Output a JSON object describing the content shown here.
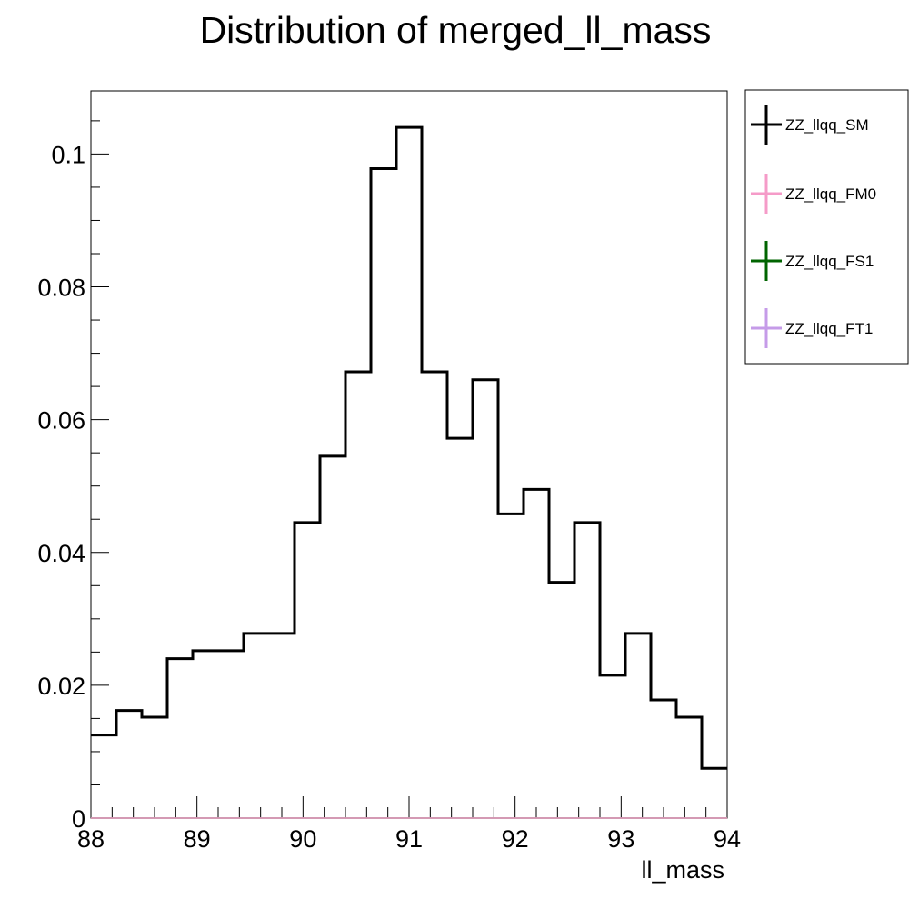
{
  "chart_data": {
    "type": "histogram-step",
    "title": "Distribution of merged_ll_mass",
    "xlabel": "ll_mass",
    "ylabel": "",
    "xlim": [
      88,
      94
    ],
    "ylim": [
      0,
      0.1095
    ],
    "x_major_ticks": [
      88,
      89,
      90,
      91,
      92,
      93,
      94
    ],
    "x_tick_labels": [
      "88",
      "89",
      "90",
      "91",
      "92",
      "93",
      "94"
    ],
    "y_major_ticks": [
      0,
      0.02,
      0.04,
      0.06,
      0.08,
      0.1
    ],
    "y_tick_labels": [
      "0",
      "0.02",
      "0.04",
      "0.06",
      "0.08",
      "0.1"
    ],
    "bin_edges": [
      88.0,
      88.24,
      88.48,
      88.72,
      88.96,
      89.2,
      89.44,
      89.68,
      89.92,
      90.16,
      90.4,
      90.64,
      90.88,
      91.12,
      91.36,
      91.6,
      91.84,
      92.08,
      92.32,
      92.56,
      92.8,
      93.04,
      93.28,
      93.52,
      93.76,
      94.0
    ],
    "series": [
      {
        "name": "ZZ_llqq_SM",
        "color": "#000000",
        "values": [
          0.0125,
          0.0162,
          0.0152,
          0.024,
          0.0252,
          0.0252,
          0.0278,
          0.0278,
          0.0445,
          0.0545,
          0.0672,
          0.0978,
          0.104,
          0.0672,
          0.0572,
          0.066,
          0.0458,
          0.0495,
          0.0355,
          0.0445,
          0.0215,
          0.0278,
          0.0178,
          0.0152,
          0.0075
        ]
      },
      {
        "name": "ZZ_llqq_FM0",
        "color": "#f59bc8",
        "values": [
          0,
          0,
          0,
          0,
          0,
          0,
          0,
          0,
          0,
          0,
          0,
          0,
          0,
          0,
          0,
          0,
          0,
          0,
          0,
          0,
          0,
          0,
          0,
          0,
          0
        ]
      },
      {
        "name": "ZZ_llqq_FS1",
        "color": "#006400",
        "values": [
          0,
          0,
          0,
          0,
          0,
          0,
          0,
          0,
          0,
          0,
          0,
          0,
          0,
          0,
          0,
          0,
          0,
          0,
          0,
          0,
          0,
          0,
          0,
          0,
          0
        ]
      },
      {
        "name": "ZZ_llqq_FT1",
        "color": "#c59be8",
        "values": [
          0,
          0,
          0,
          0,
          0,
          0,
          0,
          0,
          0,
          0,
          0,
          0,
          0,
          0,
          0,
          0,
          0,
          0,
          0,
          0,
          0,
          0,
          0,
          0,
          0
        ]
      }
    ],
    "legend_placement": "right",
    "grid": false
  }
}
